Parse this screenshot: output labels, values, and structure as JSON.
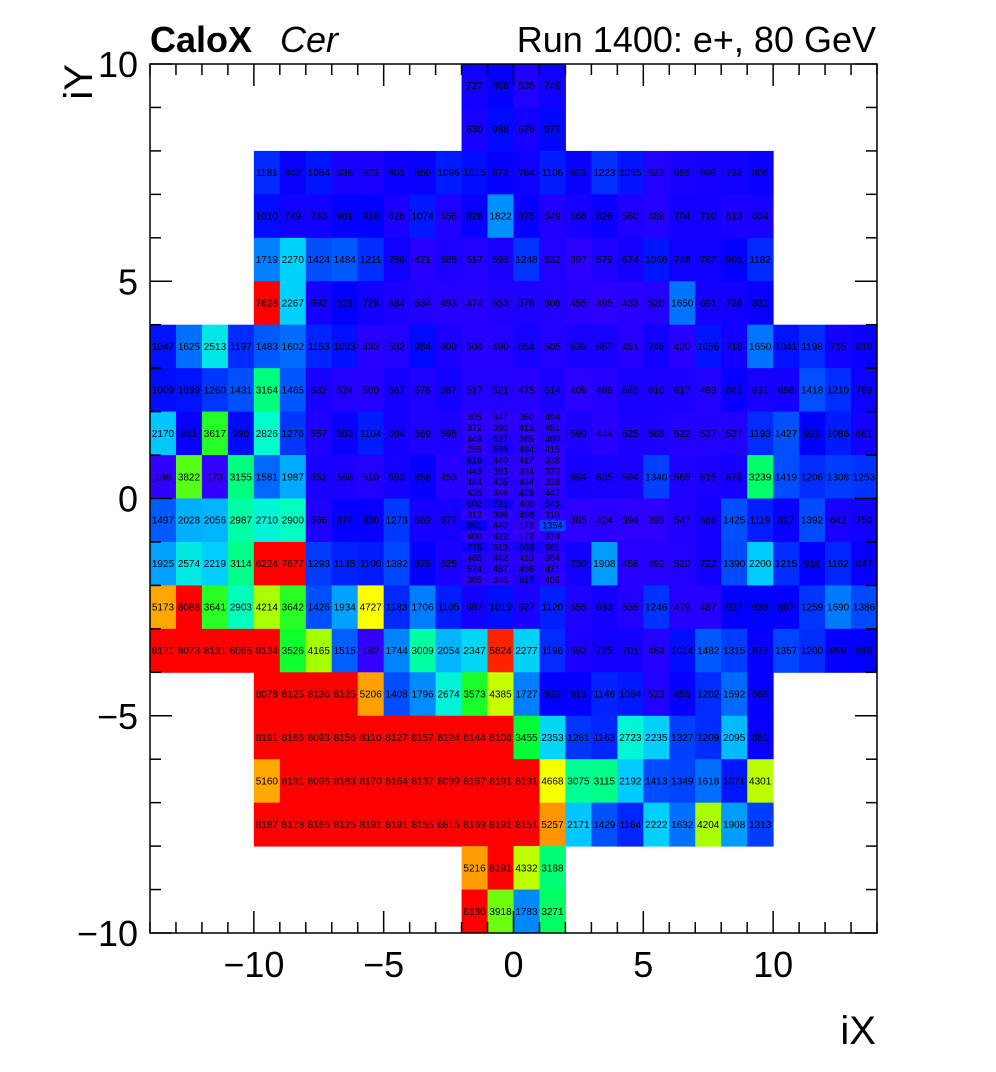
{
  "header": {
    "brand": "CaloX",
    "channel": "Cer",
    "run_info": "Run 1400: e+, 80 GeV"
  },
  "chart_data": {
    "type": "heatmap",
    "xlabel": "iX",
    "ylabel": "iY",
    "xlim": [
      -14,
      14
    ],
    "ylim": [
      -10,
      10
    ],
    "x_ticks": [
      "−10",
      "−5",
      "0",
      "5",
      "10"
    ],
    "x_tick_values": [
      -10,
      -5,
      0,
      5,
      10
    ],
    "y_ticks": [
      "−10",
      "−5",
      "0",
      "5",
      "10"
    ],
    "y_tick_values": [
      -10,
      -5,
      0,
      5,
      10
    ],
    "grid": false,
    "colorscale": [
      "#3300ff",
      "#0000ff",
      "#0066ff",
      "#00ccff",
      "#00ffcc",
      "#00ff33",
      "#99ff00",
      "#ffff00",
      "#ff8000",
      "#ff0000"
    ],
    "zlim": [
      300,
      6000
    ],
    "rows_large": [
      {
        "y": 9,
        "xstart": -2,
        "values": [
          727,
          868,
          535,
          749
        ]
      },
      {
        "y": 8,
        "xstart": -2,
        "values": [
          630,
          988,
          676,
          972
        ]
      },
      {
        "y": 7,
        "xstart": -10,
        "values": [
          1181,
          842,
          1064,
          636,
          623,
          801,
          850,
          1096,
          1015,
          872,
          764,
          1106,
          823,
          1223,
          1055,
          522,
          655,
          696,
          732,
          806
        ]
      },
      {
        "y": 6,
        "xstart": -10,
        "values": [
          1010,
          749,
          743,
          901,
          918,
          626,
          1074,
          556,
          828,
          1822,
          875,
          549,
          668,
          826,
          560,
          488,
          704,
          710,
          613,
          634
        ]
      },
      {
        "y": 5,
        "xstart": -10,
        "values": [
          1719,
          2270,
          1424,
          1484,
          1211,
          756,
          471,
          585,
          517,
          593,
          1248,
          532,
          397,
          579,
          674,
          1066,
          748,
          767,
          901,
          1182
        ]
      },
      {
        "y": 4,
        "xstart": -10,
        "values": [
          7628,
          2267,
          692,
          921,
          728,
          584,
          534,
          493,
          474,
          553,
          576,
          506,
          455,
          395,
          433,
          520,
          1650,
          691,
          736,
          831
        ]
      },
      {
        "y": 3,
        "xstart": -14,
        "values": [
          1047,
          1625,
          2513,
          1197,
          1483,
          1602,
          1153,
          1033,
          433,
          532,
          984,
          609,
          504,
          490,
          654,
          505,
          639,
          657,
          451,
          746,
          420,
          1056,
          718,
          1650,
          1041,
          1198,
          715,
          815
        ]
      },
      {
        "y": 2,
        "xstart": -14,
        "values": [
          1009,
          1039,
          1260,
          1431,
          3164,
          1465,
          632,
          524,
          500,
          667,
          578,
          687,
          517,
          521,
          475,
          614,
          409,
          489,
          665,
          610,
          617,
          493,
          841,
          631,
          698,
          1418,
          1210,
          789
        ]
      },
      {
        "y": 1,
        "xstart": -14,
        "values": [
          2170,
          841,
          3617,
          990,
          2826,
          1276,
          557,
          803,
          1104,
          694,
          569,
          595,
          null,
          null,
          null,
          null,
          590,
          444,
          625,
          588,
          522,
          537,
          537,
          1193,
          1427,
          929,
          1086,
          681
        ]
      },
      {
        "y": 0,
        "xstart": -14,
        "values": [
          186,
          3822,
          173,
          3155,
          1581,
          1987,
          652,
          596,
          510,
          693,
          858,
          453,
          null,
          null,
          null,
          null,
          694,
          635,
          594,
          1340,
          565,
          615,
          678,
          3239,
          1419,
          1206,
          1308,
          1253
        ]
      },
      {
        "y": -1,
        "xstart": -14,
        "values": [
          1497,
          2028,
          2056,
          2987,
          2710,
          2900,
          566,
          874,
          830,
          1273,
          669,
          677,
          null,
          null,
          null,
          null,
          385,
          424,
          394,
          393,
          547,
          686,
          1425,
          1119,
          827,
          1392,
          642,
          750
        ]
      },
      {
        "y": -2,
        "xstart": -14,
        "values": [
          1925,
          2574,
          2219,
          3114,
          6224,
          7677,
          1293,
          1135,
          1100,
          1382,
          879,
          625,
          null,
          null,
          null,
          null,
          730,
          1908,
          458,
          492,
          520,
          722,
          1390,
          2200,
          1215,
          916,
          1162,
          847
        ]
      },
      {
        "y": -3,
        "xstart": -14,
        "values": [
          5173,
          8088,
          3641,
          2903,
          4214,
          3642,
          1426,
          1934,
          4727,
          1183,
          1706,
          1105,
          697,
          1019,
          627,
          1120,
          555,
          693,
          535,
          1246,
          479,
          487,
          927,
          938,
          887,
          1259,
          1690,
          1386
        ]
      },
      {
        "y": -4,
        "xstart": -14,
        "values": [
          8171,
          8073,
          8131,
          6065,
          8134,
          3526,
          4165,
          1515,
          182,
          1744,
          3009,
          2054,
          2347,
          5824,
          2277,
          1196,
          592,
          725,
          701,
          484,
          1014,
          1482,
          1315,
          872,
          1357,
          1200,
          899,
          918
        ]
      },
      {
        "y": -5,
        "xstart": -10,
        "values": [
          8078,
          8125,
          8136,
          8125,
          5206,
          1408,
          1796,
          2674,
          3573,
          4385,
          1727,
          922,
          913,
          1146,
          1084,
          523,
          859,
          1202,
          1592,
          865
        ]
      },
      {
        "y": -6,
        "xstart": -10,
        "values": [
          8191,
          8166,
          8093,
          8156,
          8110,
          8127,
          8157,
          8124,
          8144,
          8108,
          3455,
          2353,
          1261,
          1163,
          2723,
          2235,
          1327,
          1209,
          2095,
          851
        ]
      },
      {
        "y": -7,
        "xstart": -10,
        "values": [
          5160,
          8191,
          8096,
          8183,
          8170,
          8164,
          8137,
          8099,
          8167,
          8191,
          8191,
          4668,
          3075,
          3115,
          2192,
          1413,
          1349,
          1618,
          1071,
          4301
        ]
      },
      {
        "y": -8,
        "xstart": -10,
        "values": [
          8187,
          8178,
          8165,
          8125,
          8191,
          8191,
          8155,
          6815,
          8169,
          8191,
          8151,
          5257,
          2171,
          1429,
          1164,
          2222,
          1632,
          4204,
          1908,
          1313
        ]
      },
      {
        "y": -9,
        "xstart": -2,
        "values": [
          5216,
          8191,
          4332,
          3188
        ]
      },
      {
        "y": -10,
        "xstart": -2,
        "values": [
          8180,
          3918,
          1783,
          3271
        ]
      }
    ],
    "fine_region": {
      "x": [
        -2,
        2
      ],
      "y": [
        -3,
        2
      ],
      "cols": 4,
      "rows": 20
    },
    "fine_values": [
      [
        305,
        347,
        360,
        494
      ],
      [
        372,
        390,
        413,
        451
      ],
      [
        449,
        537,
        385,
        490
      ],
      [
        295,
        599,
        484,
        415
      ],
      [
        616,
        440,
        417,
        338
      ],
      [
        449,
        393,
        334,
        370
      ],
      [
        444,
        435,
        444,
        338
      ],
      [
        435,
        346,
        426,
        447
      ],
      [
        602,
        721,
        400,
        543
      ],
      [
        312,
        396,
        498,
        310
      ],
      [
        861,
        440,
        173,
        1354
      ],
      [
        400,
        422,
        172,
        374
      ],
      [
        776,
        513,
        683,
        561
      ],
      [
        485,
        442,
        413,
        384
      ],
      [
        524,
        487,
        496,
        471
      ],
      [
        385,
        346,
        617,
        405
      ],
      [
        null,
        null,
        null,
        null
      ],
      [
        null,
        null,
        null,
        null
      ],
      [
        null,
        null,
        null,
        null
      ],
      [
        null,
        null,
        null,
        null
      ]
    ]
  }
}
